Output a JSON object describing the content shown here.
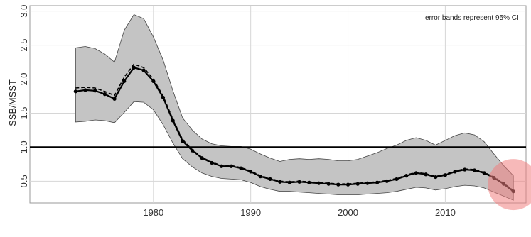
{
  "chart_data": {
    "type": "line",
    "title": "",
    "xlabel": "",
    "ylabel": "SSB/MSST",
    "annotation": "error bands represent 95% CI",
    "xlim": [
      1967.3,
      2018.3
    ],
    "ylim": [
      0.18,
      3.08
    ],
    "xticks": [
      1980,
      1990,
      2000,
      2010
    ],
    "yticks": [
      0.5,
      1.0,
      1.5,
      2.0,
      2.5,
      3.0
    ],
    "ytick_labels": [
      "0.5",
      "1.0",
      "1.5",
      "2.0",
      "2.5",
      "3.0"
    ],
    "grid": true,
    "reference_line": {
      "y": 1.0,
      "color": "#000000"
    },
    "x": [
      1972,
      1973,
      1974,
      1975,
      1976,
      1977,
      1978,
      1979,
      1980,
      1981,
      1982,
      1983,
      1984,
      1985,
      1986,
      1987,
      1988,
      1989,
      1990,
      1991,
      1992,
      1993,
      1994,
      1995,
      1996,
      1997,
      1998,
      1999,
      2000,
      2001,
      2002,
      2003,
      2004,
      2005,
      2006,
      2007,
      2008,
      2009,
      2010,
      2011,
      2012,
      2013,
      2014,
      2015,
      2016,
      2017
    ],
    "series": [
      {
        "style": "solid",
        "values": [
          1.82,
          1.84,
          1.83,
          1.78,
          1.71,
          1.97,
          2.17,
          2.13,
          1.97,
          1.73,
          1.39,
          1.09,
          0.95,
          0.84,
          0.77,
          0.72,
          0.72,
          0.69,
          0.64,
          0.57,
          0.53,
          0.49,
          0.48,
          0.49,
          0.48,
          0.47,
          0.46,
          0.45,
          0.45,
          0.46,
          0.47,
          0.48,
          0.5,
          0.53,
          0.58,
          0.62,
          0.6,
          0.56,
          0.59,
          0.64,
          0.67,
          0.66,
          0.62,
          0.55,
          0.46,
          0.35
        ]
      },
      {
        "style": "dashed",
        "values": [
          1.87,
          1.88,
          1.87,
          1.82,
          1.76,
          2.03,
          2.22,
          2.17,
          2.0,
          1.75,
          1.41,
          1.11,
          0.96,
          0.85,
          0.78,
          0.73,
          0.73,
          0.7,
          0.65,
          0.58,
          0.54,
          0.5,
          0.49,
          0.5,
          0.49,
          0.48,
          0.47,
          0.46,
          0.46,
          0.47,
          0.48,
          0.49,
          0.51,
          0.54,
          0.59,
          0.63,
          0.61,
          0.57,
          0.6,
          0.65,
          0.68,
          0.67,
          0.63,
          0.56,
          0.47,
          0.36
        ]
      }
    ],
    "band": {
      "x": [
        1972,
        1973,
        1974,
        1975,
        1976,
        1977,
        1978,
        1979,
        1980,
        1981,
        1982,
        1983,
        1984,
        1985,
        1986,
        1987,
        1988,
        1989,
        1990,
        1991,
        1992,
        1993,
        1994,
        1995,
        1996,
        1997,
        1998,
        1999,
        2000,
        2001,
        2002,
        2003,
        2004,
        2005,
        2006,
        2007,
        2008,
        2009,
        2010,
        2011,
        2012,
        2013,
        2014,
        2015,
        2016,
        2017
      ],
      "upper": [
        2.46,
        2.48,
        2.45,
        2.37,
        2.25,
        2.72,
        2.95,
        2.89,
        2.62,
        2.28,
        1.83,
        1.43,
        1.25,
        1.12,
        1.05,
        1.02,
        1.01,
        1.01,
        0.97,
        0.9,
        0.84,
        0.79,
        0.82,
        0.83,
        0.82,
        0.83,
        0.82,
        0.8,
        0.8,
        0.82,
        0.87,
        0.92,
        0.98,
        1.03,
        1.1,
        1.14,
        1.1,
        1.03,
        1.1,
        1.17,
        1.21,
        1.18,
        1.08,
        0.9,
        0.73,
        0.58
      ],
      "lower": [
        1.37,
        1.38,
        1.4,
        1.39,
        1.36,
        1.51,
        1.67,
        1.66,
        1.55,
        1.33,
        1.06,
        0.83,
        0.71,
        0.62,
        0.57,
        0.54,
        0.53,
        0.52,
        0.48,
        0.42,
        0.38,
        0.35,
        0.35,
        0.34,
        0.33,
        0.32,
        0.31,
        0.3,
        0.3,
        0.3,
        0.31,
        0.32,
        0.33,
        0.35,
        0.38,
        0.41,
        0.4,
        0.37,
        0.39,
        0.42,
        0.44,
        0.43,
        0.4,
        0.34,
        0.28,
        0.22
      ],
      "fill": "#c4c4c4",
      "stroke": "#444444"
    },
    "highlight": {
      "x": 2017,
      "y": 0.45,
      "color": "#f08080"
    }
  }
}
